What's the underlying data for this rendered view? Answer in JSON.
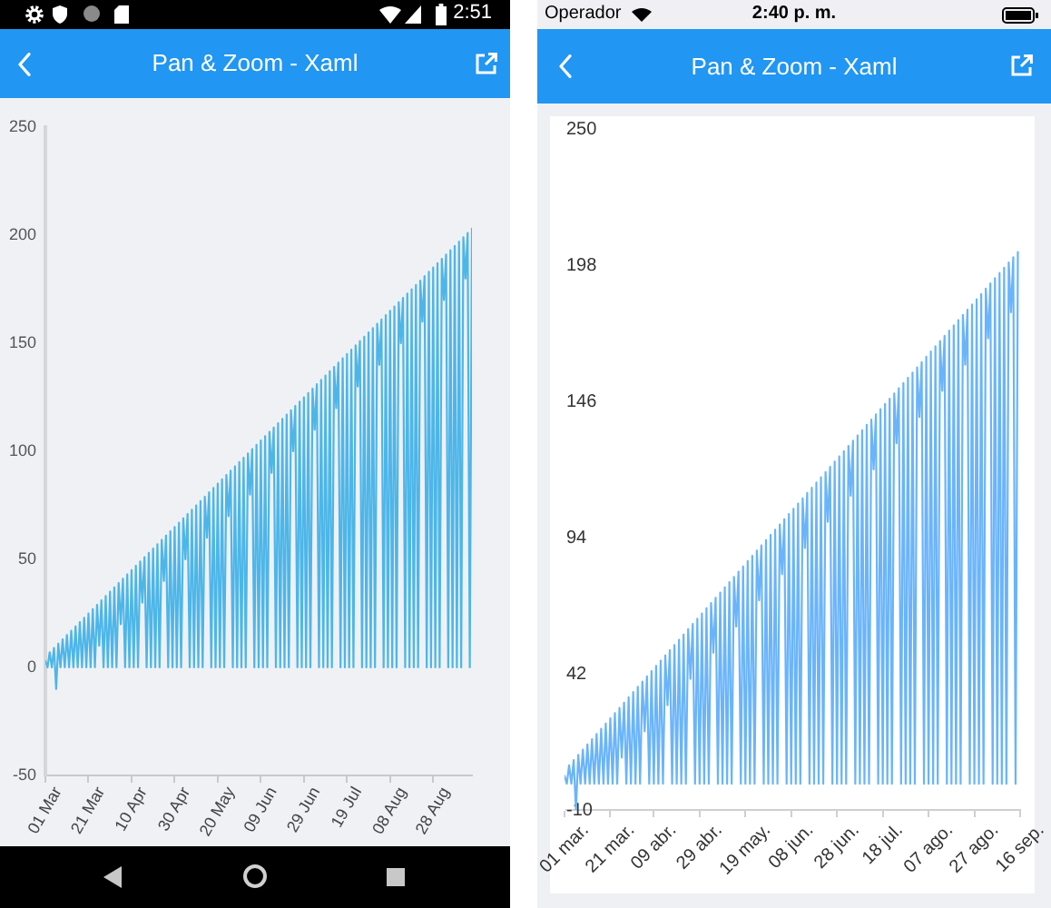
{
  "chart_data": [
    {
      "type": "line",
      "title": "Pan & Zoom - Xaml",
      "annotations": [
        "2:51"
      ],
      "x": [
        "--03-01",
        "--03-02",
        "--03-03",
        "--03-04",
        "--03-05",
        "--03-06",
        "--03-07",
        "--03-08",
        "--03-09",
        "--03-10",
        "--03-11",
        "--03-12",
        "--03-13",
        "--03-14",
        "--03-15",
        "--03-16",
        "--03-17",
        "--03-18",
        "--03-19",
        "--03-20",
        "--03-21",
        "--03-22",
        "--03-23",
        "--03-24",
        "--03-25",
        "--03-26",
        "--03-27",
        "--03-28",
        "--03-29",
        "--03-30",
        "--03-31",
        "--04-01",
        "--04-02",
        "--04-03",
        "--04-04",
        "--04-05",
        "--04-06",
        "--04-07",
        "--04-08",
        "--04-09",
        "--04-10",
        "--04-11",
        "--04-12",
        "--04-13",
        "--04-14",
        "--04-15",
        "--04-16",
        "--04-17",
        "--04-18",
        "--04-19",
        "--04-20",
        "--04-21",
        "--04-22",
        "--04-23",
        "--04-24",
        "--04-25",
        "--04-26",
        "--04-27",
        "--04-28",
        "--04-29",
        "--04-30",
        "--05-01",
        "--05-02",
        "--05-03",
        "--05-04",
        "--05-05",
        "--05-06",
        "--05-07",
        "--05-08",
        "--05-09",
        "--05-10",
        "--05-11",
        "--05-12",
        "--05-13",
        "--05-14",
        "--05-15",
        "--05-16",
        "--05-17",
        "--05-18",
        "--05-19",
        "--05-20",
        "--05-21",
        "--05-22",
        "--05-23",
        "--05-24",
        "--05-25",
        "--05-26",
        "--05-27",
        "--05-28",
        "--05-29",
        "--05-30",
        "--05-31",
        "--06-01",
        "--06-02",
        "--06-03",
        "--06-04",
        "--06-05",
        "--06-06",
        "--06-07",
        "--06-08",
        "--06-09",
        "--06-10",
        "--06-11",
        "--06-12",
        "--06-13",
        "--06-14",
        "--06-15",
        "--06-16",
        "--06-17",
        "--06-18",
        "--06-19",
        "--06-20",
        "--06-21",
        "--06-22",
        "--06-23",
        "--06-24",
        "--06-25",
        "--06-26",
        "--06-27",
        "--06-28",
        "--06-29",
        "--06-30",
        "--07-01",
        "--07-02",
        "--07-03",
        "--07-04",
        "--07-05",
        "--07-06",
        "--07-07",
        "--07-08",
        "--07-09",
        "--07-10",
        "--07-11",
        "--07-12",
        "--07-13",
        "--07-14",
        "--07-15",
        "--07-16",
        "--07-17",
        "--07-18",
        "--07-19",
        "--07-20",
        "--07-21",
        "--07-22",
        "--07-23",
        "--07-24",
        "--07-25",
        "--07-26",
        "--07-27",
        "--07-28",
        "--07-29",
        "--07-30",
        "--07-31",
        "--08-01",
        "--08-02",
        "--08-03",
        "--08-04",
        "--08-05",
        "--08-06",
        "--08-07",
        "--08-08",
        "--08-09",
        "--08-10",
        "--08-11",
        "--08-12",
        "--08-13",
        "--08-14",
        "--08-15",
        "--08-16",
        "--08-17",
        "--08-18",
        "--08-19",
        "--08-20",
        "--08-21",
        "--08-22",
        "--08-23",
        "--08-24",
        "--08-25",
        "--08-26",
        "--08-27",
        "--08-28",
        "--08-29",
        "--08-30",
        "--08-31",
        "--09-01",
        "--09-02",
        "--09-03",
        "--09-04",
        "--09-05",
        "--09-06",
        "--09-07",
        "--09-08",
        "--09-09",
        "--09-10",
        "--09-11",
        "--09-12",
        "--09-13",
        "--09-14",
        "--09-15"
      ],
      "values": [
        3,
        0,
        7,
        0,
        9,
        -10,
        11,
        0,
        13,
        0,
        15,
        0,
        17,
        0,
        19,
        0,
        21,
        0,
        23,
        0,
        25,
        0,
        27,
        0,
        29,
        10,
        31,
        0,
        33,
        0,
        35,
        0,
        37,
        0,
        39,
        20,
        41,
        0,
        43,
        0,
        45,
        0,
        47,
        0,
        49,
        30,
        51,
        0,
        53,
        0,
        55,
        0,
        57,
        0,
        59,
        40,
        61,
        0,
        63,
        0,
        65,
        0,
        67,
        0,
        69,
        50,
        71,
        0,
        73,
        0,
        75,
        0,
        77,
        0,
        79,
        60,
        81,
        0,
        83,
        0,
        85,
        0,
        87,
        0,
        89,
        70,
        91,
        0,
        93,
        0,
        95,
        0,
        97,
        0,
        99,
        80,
        101,
        0,
        103,
        0,
        105,
        0,
        107,
        0,
        109,
        90,
        111,
        0,
        113,
        0,
        115,
        0,
        117,
        0,
        119,
        100,
        121,
        0,
        123,
        0,
        125,
        0,
        127,
        0,
        129,
        110,
        131,
        0,
        133,
        0,
        135,
        0,
        137,
        0,
        139,
        120,
        141,
        0,
        143,
        0,
        145,
        0,
        147,
        0,
        149,
        130,
        151,
        0,
        153,
        0,
        155,
        0,
        157,
        0,
        159,
        140,
        161,
        0,
        163,
        0,
        165,
        0,
        167,
        0,
        169,
        150,
        171,
        0,
        173,
        0,
        175,
        0,
        177,
        0,
        179,
        160,
        181,
        0,
        183,
        0,
        185,
        0,
        187,
        0,
        189,
        170,
        191,
        0,
        193,
        0,
        195,
        0,
        197,
        0,
        199,
        180,
        201,
        0,
        203
      ],
      "color": "#4db6e8",
      "xlim": [
        "--03-01",
        "--09-15"
      ],
      "xticks": [
        {
          "value": "--03-01",
          "label": "01 Mar"
        },
        {
          "value": "--03-21",
          "label": "21 Mar"
        },
        {
          "value": "--04-10",
          "label": "10 Apr"
        },
        {
          "value": "--04-30",
          "label": "30 Apr"
        },
        {
          "value": "--05-20",
          "label": "20 May"
        },
        {
          "value": "--06-09",
          "label": "09 Jun"
        },
        {
          "value": "--06-29",
          "label": "29 Jun"
        },
        {
          "value": "--07-19",
          "label": "19 Jul"
        },
        {
          "value": "--08-08",
          "label": "08 Aug"
        },
        {
          "value": "--08-28",
          "label": "28 Aug"
        }
      ],
      "ylim": [
        -50,
        250
      ],
      "yticks": [
        -50,
        0,
        50,
        100,
        150,
        200,
        250
      ]
    },
    {
      "type": "line",
      "title": "Pan & Zoom - Xaml",
      "annotations": [
        "Operador",
        "2:40 p. m."
      ],
      "x": [
        "--03-01",
        "--03-02",
        "--03-03",
        "--03-04",
        "--03-05",
        "--03-06",
        "--03-07",
        "--03-08",
        "--03-09",
        "--03-10",
        "--03-11",
        "--03-12",
        "--03-13",
        "--03-14",
        "--03-15",
        "--03-16",
        "--03-17",
        "--03-18",
        "--03-19",
        "--03-20",
        "--03-21",
        "--03-22",
        "--03-23",
        "--03-24",
        "--03-25",
        "--03-26",
        "--03-27",
        "--03-28",
        "--03-29",
        "--03-30",
        "--03-31",
        "--04-01",
        "--04-02",
        "--04-03",
        "--04-04",
        "--04-05",
        "--04-06",
        "--04-07",
        "--04-08",
        "--04-09",
        "--04-10",
        "--04-11",
        "--04-12",
        "--04-13",
        "--04-14",
        "--04-15",
        "--04-16",
        "--04-17",
        "--04-18",
        "--04-19",
        "--04-20",
        "--04-21",
        "--04-22",
        "--04-23",
        "--04-24",
        "--04-25",
        "--04-26",
        "--04-27",
        "--04-28",
        "--04-29",
        "--04-30",
        "--05-01",
        "--05-02",
        "--05-03",
        "--05-04",
        "--05-05",
        "--05-06",
        "--05-07",
        "--05-08",
        "--05-09",
        "--05-10",
        "--05-11",
        "--05-12",
        "--05-13",
        "--05-14",
        "--05-15",
        "--05-16",
        "--05-17",
        "--05-18",
        "--05-19",
        "--05-20",
        "--05-21",
        "--05-22",
        "--05-23",
        "--05-24",
        "--05-25",
        "--05-26",
        "--05-27",
        "--05-28",
        "--05-29",
        "--05-30",
        "--05-31",
        "--06-01",
        "--06-02",
        "--06-03",
        "--06-04",
        "--06-05",
        "--06-06",
        "--06-07",
        "--06-08",
        "--06-09",
        "--06-10",
        "--06-11",
        "--06-12",
        "--06-13",
        "--06-14",
        "--06-15",
        "--06-16",
        "--06-17",
        "--06-18",
        "--06-19",
        "--06-20",
        "--06-21",
        "--06-22",
        "--06-23",
        "--06-24",
        "--06-25",
        "--06-26",
        "--06-27",
        "--06-28",
        "--06-29",
        "--06-30",
        "--07-01",
        "--07-02",
        "--07-03",
        "--07-04",
        "--07-05",
        "--07-06",
        "--07-07",
        "--07-08",
        "--07-09",
        "--07-10",
        "--07-11",
        "--07-12",
        "--07-13",
        "--07-14",
        "--07-15",
        "--07-16",
        "--07-17",
        "--07-18",
        "--07-19",
        "--07-20",
        "--07-21",
        "--07-22",
        "--07-23",
        "--07-24",
        "--07-25",
        "--07-26",
        "--07-27",
        "--07-28",
        "--07-29",
        "--07-30",
        "--07-31",
        "--08-01",
        "--08-02",
        "--08-03",
        "--08-04",
        "--08-05",
        "--08-06",
        "--08-07",
        "--08-08",
        "--08-09",
        "--08-10",
        "--08-11",
        "--08-12",
        "--08-13",
        "--08-14",
        "--08-15",
        "--08-16",
        "--08-17",
        "--08-18",
        "--08-19",
        "--08-20",
        "--08-21",
        "--08-22",
        "--08-23",
        "--08-24",
        "--08-25",
        "--08-26",
        "--08-27",
        "--08-28",
        "--08-29",
        "--08-30",
        "--08-31",
        "--09-01",
        "--09-02",
        "--09-03",
        "--09-04",
        "--09-05",
        "--09-06",
        "--09-07",
        "--09-08",
        "--09-09",
        "--09-10",
        "--09-11",
        "--09-12",
        "--09-13",
        "--09-14",
        "--09-15"
      ],
      "values": [
        3,
        0,
        7,
        0,
        9,
        -10,
        11,
        0,
        13,
        0,
        15,
        0,
        17,
        0,
        19,
        0,
        21,
        0,
        23,
        0,
        25,
        0,
        27,
        0,
        29,
        10,
        31,
        0,
        33,
        0,
        35,
        0,
        37,
        0,
        39,
        20,
        41,
        0,
        43,
        0,
        45,
        0,
        47,
        0,
        49,
        30,
        51,
        0,
        53,
        0,
        55,
        0,
        57,
        0,
        59,
        40,
        61,
        0,
        63,
        0,
        65,
        0,
        67,
        0,
        69,
        50,
        71,
        0,
        73,
        0,
        75,
        0,
        77,
        0,
        79,
        60,
        81,
        0,
        83,
        0,
        85,
        0,
        87,
        0,
        89,
        70,
        91,
        0,
        93,
        0,
        95,
        0,
        97,
        0,
        99,
        80,
        101,
        0,
        103,
        0,
        105,
        0,
        107,
        0,
        109,
        90,
        111,
        0,
        113,
        0,
        115,
        0,
        117,
        0,
        119,
        100,
        121,
        0,
        123,
        0,
        125,
        0,
        127,
        0,
        129,
        110,
        131,
        0,
        133,
        0,
        135,
        0,
        137,
        0,
        139,
        120,
        141,
        0,
        143,
        0,
        145,
        0,
        147,
        0,
        149,
        130,
        151,
        0,
        153,
        0,
        155,
        0,
        157,
        0,
        159,
        140,
        161,
        0,
        163,
        0,
        165,
        0,
        167,
        0,
        169,
        150,
        171,
        0,
        173,
        0,
        175,
        0,
        177,
        0,
        179,
        160,
        181,
        0,
        183,
        0,
        185,
        0,
        187,
        0,
        189,
        170,
        191,
        0,
        193,
        0,
        195,
        0,
        197,
        0,
        199,
        180,
        201,
        0,
        203
      ],
      "color": "#6ab4fb",
      "xlim": [
        "--03-01",
        "--09-16"
      ],
      "xticks": [
        {
          "value": "--03-01",
          "label": "01 mar."
        },
        {
          "value": "--03-21",
          "label": "21 mar."
        },
        {
          "value": "--04-09",
          "label": "09 abr."
        },
        {
          "value": "--04-29",
          "label": "29 abr."
        },
        {
          "value": "--05-19",
          "label": "19 may."
        },
        {
          "value": "--06-08",
          "label": "08 jun."
        },
        {
          "value": "--06-28",
          "label": "28 jun."
        },
        {
          "value": "--07-18",
          "label": "18 jul."
        },
        {
          "value": "--08-07",
          "label": "07 ago."
        },
        {
          "value": "--08-27",
          "label": "27 ago."
        },
        {
          "value": "--09-16",
          "label": "16 sep."
        }
      ],
      "ylim": [
        -10,
        250
      ],
      "yticks": [
        -10,
        42,
        94,
        146,
        198,
        250
      ]
    }
  ]
}
